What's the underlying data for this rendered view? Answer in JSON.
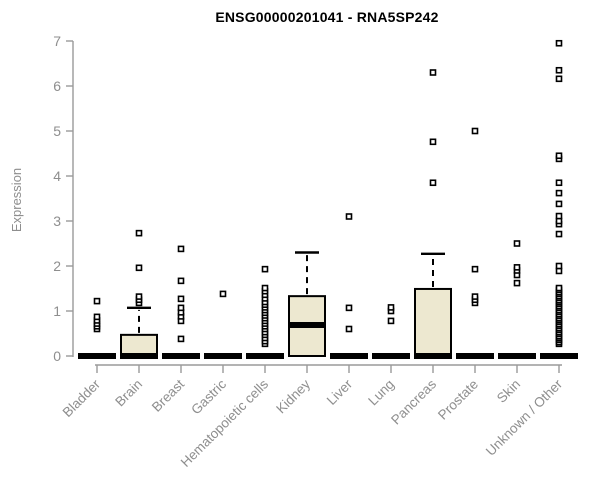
{
  "chart_data": {
    "type": "boxplot",
    "title": "ENSG00000201041 - RNA5SP242",
    "ylabel": "Expression",
    "xlabel": "",
    "ylim": [
      0,
      7
    ],
    "yticks": [
      0,
      1,
      2,
      3,
      4,
      5,
      6,
      7
    ],
    "grid": false,
    "legend": "none",
    "categories": [
      "Bladder",
      "Brain",
      "Breast",
      "Gastric",
      "Hematopoietic cells",
      "Kidney",
      "Liver",
      "Lung",
      "Pancreas",
      "Prostate",
      "Skin",
      "Unknown / Other"
    ],
    "boxes": [
      {
        "category": "Bladder",
        "median": 0,
        "q1": 0,
        "q3": 0,
        "whisker_low": 0,
        "whisker_high": 0,
        "outliers": [
          0.6,
          0.66,
          0.72,
          0.79,
          0.87,
          1.22
        ]
      },
      {
        "category": "Brain",
        "median": 0,
        "q1": 0,
        "q3": 0.47,
        "whisker_low": 0,
        "whisker_high": 1.07,
        "outliers": [
          1.18,
          1.25,
          1.32,
          1.96,
          2.73
        ]
      },
      {
        "category": "Breast",
        "median": 0,
        "q1": 0,
        "q3": 0,
        "whisker_low": 0,
        "whisker_high": 0,
        "outliers": [
          0.38,
          0.78,
          0.88,
          0.97,
          1.07,
          1.27,
          1.67,
          2.38
        ]
      },
      {
        "category": "Gastric",
        "median": 0,
        "q1": 0,
        "q3": 0,
        "whisker_low": 0,
        "whisker_high": 0,
        "outliers": [
          1.38
        ]
      },
      {
        "category": "Hematopoietic cells",
        "median": 0,
        "q1": 0,
        "q3": 0,
        "whisker_low": 0,
        "whisker_high": 0,
        "outliers": [
          0.27,
          0.33,
          0.4,
          0.47,
          0.53,
          0.6,
          0.66,
          0.72,
          0.78,
          0.84,
          0.9,
          0.96,
          1.02,
          1.08,
          1.14,
          1.2,
          1.28,
          1.36,
          1.44,
          1.51,
          1.93
        ]
      },
      {
        "category": "Kidney",
        "median": 0.69,
        "q1": 0,
        "q3": 1.33,
        "whisker_low": 0,
        "whisker_high": 2.3,
        "outliers": []
      },
      {
        "category": "Liver",
        "median": 0,
        "q1": 0,
        "q3": 0,
        "whisker_low": 0,
        "whisker_high": 0,
        "outliers": [
          0.6,
          1.07,
          3.1
        ]
      },
      {
        "category": "Lung",
        "median": 0,
        "q1": 0,
        "q3": 0,
        "whisker_low": 0,
        "whisker_high": 0,
        "outliers": [
          0.78,
          1.0,
          1.08
        ]
      },
      {
        "category": "Pancreas",
        "median": 0,
        "q1": 0,
        "q3": 1.49,
        "whisker_low": 0,
        "whisker_high": 2.27,
        "outliers": [
          3.85,
          4.76,
          6.3
        ]
      },
      {
        "category": "Prostate",
        "median": 0,
        "q1": 0,
        "q3": 0,
        "whisker_low": 0,
        "whisker_high": 0,
        "outliers": [
          1.18,
          1.25,
          1.32,
          1.93,
          5.0
        ]
      },
      {
        "category": "Skin",
        "median": 0,
        "q1": 0,
        "q3": 0,
        "whisker_low": 0,
        "whisker_high": 0,
        "outliers": [
          1.62,
          1.8,
          1.9,
          1.97,
          2.5
        ]
      },
      {
        "category": "Unknown / Other",
        "median": 0,
        "q1": 0,
        "q3": 0,
        "whisker_low": 0,
        "whisker_high": 0,
        "outliers": [
          0.27,
          0.31,
          0.36,
          0.4,
          0.44,
          0.49,
          0.53,
          0.58,
          0.62,
          0.67,
          0.71,
          0.76,
          0.8,
          0.84,
          0.89,
          0.93,
          0.98,
          1.02,
          1.07,
          1.11,
          1.16,
          1.2,
          1.24,
          1.29,
          1.33,
          1.38,
          1.42,
          1.47,
          1.51,
          1.89,
          2.0,
          2.71,
          2.93,
          3.0,
          3.11,
          3.38,
          3.62,
          3.85,
          4.38,
          4.45,
          6.16,
          6.35,
          6.95
        ]
      }
    ],
    "colors": {
      "box_fill": "#ede8d0",
      "box_stroke": "#000000",
      "median": "#000000",
      "outlier_stroke": "#000000",
      "outlier_fill": "#ffffff",
      "axis_line": "#9a9a9a",
      "axis_text": "#8e8e8e",
      "title": "#000000",
      "background": "#ffffff"
    }
  }
}
